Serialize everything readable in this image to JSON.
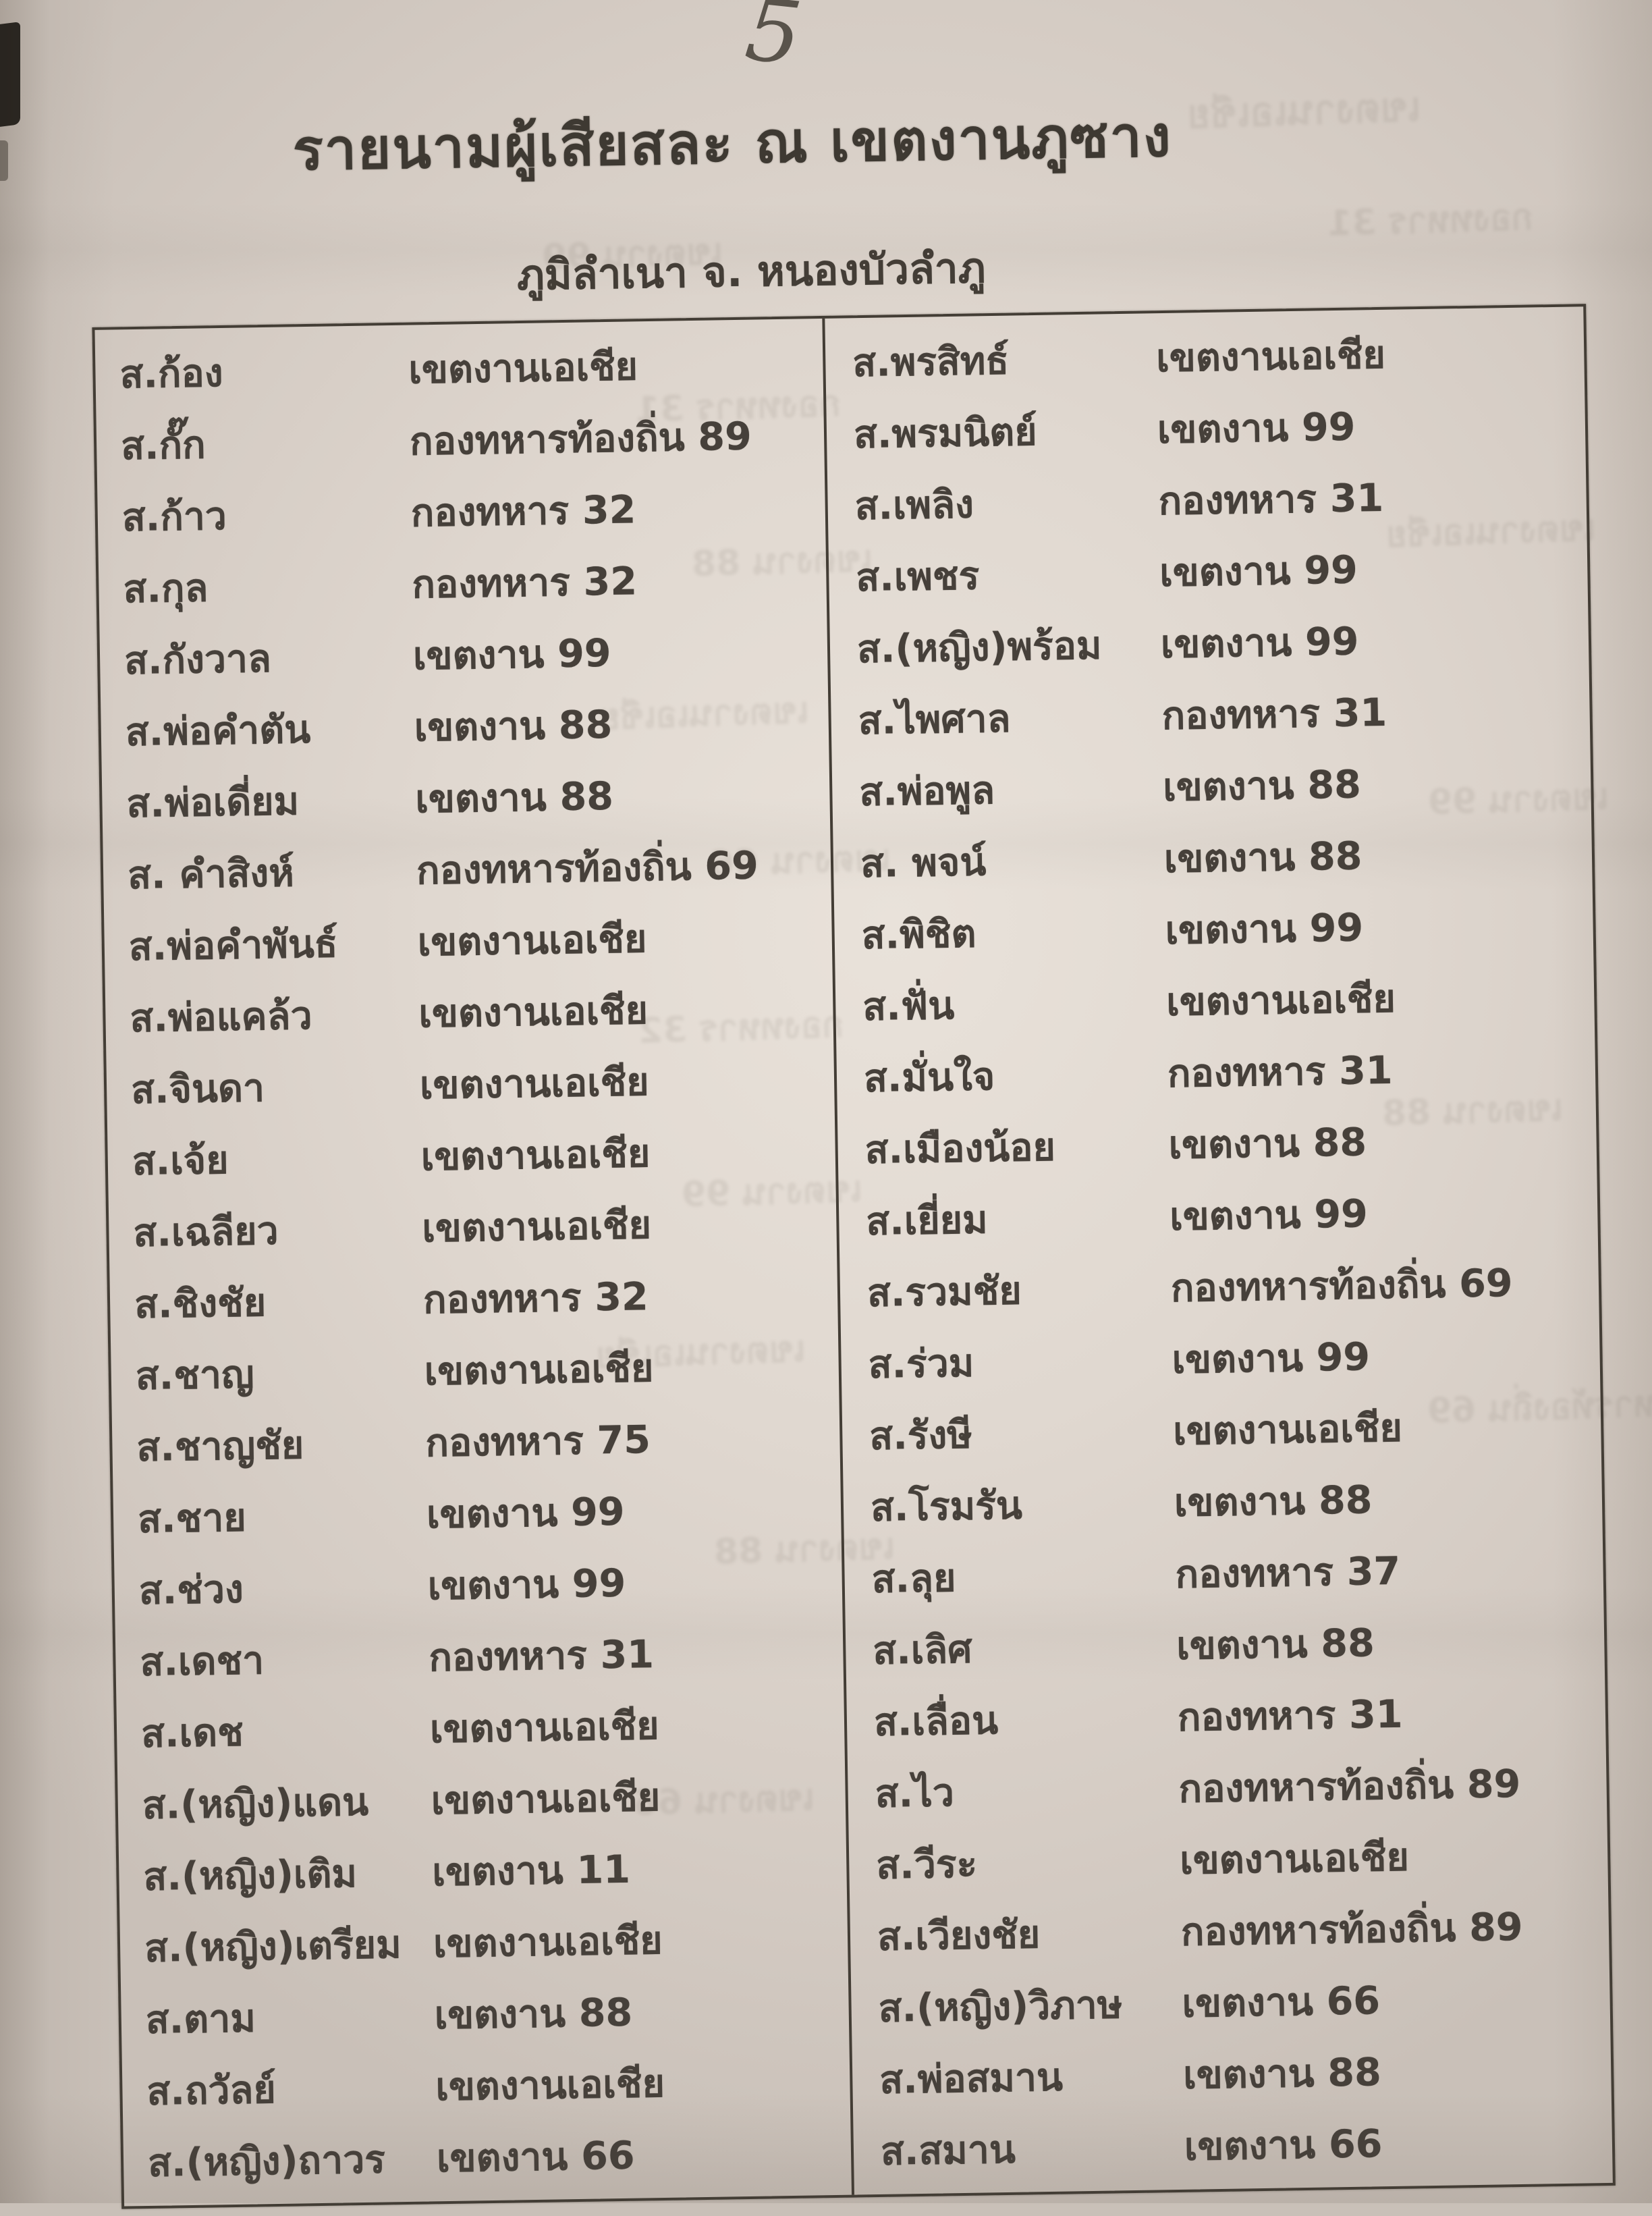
{
  "page": {
    "page_number": "5",
    "title": "รายนามผู้เสียสละ ณ เขตงานภูซาง",
    "subtitle": "ภูมิลำเนา จ. หนองบัวลำภู"
  },
  "table": {
    "left_rows": [
      {
        "n": "ส.ก้อง",
        "u": "เขตงานเอเชีย"
      },
      {
        "n": "ส.กั๊ก",
        "u": "กองทหารท้องถิ่น 89"
      },
      {
        "n": "ส.ก้าว",
        "u": "กองทหาร 32"
      },
      {
        "n": "ส.กุล",
        "u": "กองทหาร 32"
      },
      {
        "n": "ส.กังวาล",
        "u": "เขตงาน 99"
      },
      {
        "n": "ส.พ่อคำตัน",
        "u": "เขตงาน 88"
      },
      {
        "n": "ส.พ่อเดี่ยม",
        "u": "เขตงาน 88"
      },
      {
        "n": "ส. คำสิงห์",
        "u": "กองทหารท้องถิ่น 69"
      },
      {
        "n": "ส.พ่อคำพันธ์",
        "u": "เขตงานเอเชีย"
      },
      {
        "n": "ส.พ่อแคล้ว",
        "u": "เขตงานเอเชีย"
      },
      {
        "n": "ส.จินดา",
        "u": "เขตงานเอเชีย"
      },
      {
        "n": "ส.เจ้ย",
        "u": "เขตงานเอเชีย"
      },
      {
        "n": "ส.เฉลียว",
        "u": "เขตงานเอเชีย"
      },
      {
        "n": "ส.ชิงชัย",
        "u": "กองทหาร 32"
      },
      {
        "n": "ส.ชาญ",
        "u": "เขตงานเอเชีย"
      },
      {
        "n": "ส.ชาญชัย",
        "u": "กองทหาร 75"
      },
      {
        "n": "ส.ชาย",
        "u": "เขตงาน 99"
      },
      {
        "n": "ส.ช่วง",
        "u": "เขตงาน 99"
      },
      {
        "n": "ส.เดชา",
        "u": "กองทหาร 31"
      },
      {
        "n": "ส.เดช",
        "u": "เขตงานเอเชีย"
      },
      {
        "n": "ส.(หญิง)แดน",
        "u": "เขตงานเอเชีย"
      },
      {
        "n": "ส.(หญิง)เติม",
        "u": "เขตงาน 11"
      },
      {
        "n": "ส.(หญิง)เตรียม",
        "u": "เขตงานเอเชีย"
      },
      {
        "n": "ส.ตาม",
        "u": "เขตงาน 88"
      },
      {
        "n": "ส.ถวัลย์",
        "u": "เขตงานเอเชีย"
      },
      {
        "n": "ส.(หญิง)ถาวร",
        "u": "เขตงาน 66"
      }
    ],
    "right_rows": [
      {
        "n": "ส.พรสิทธ์",
        "u": "เขตงานเอเชีย"
      },
      {
        "n": "ส.พรมนิตย์",
        "u": "เขตงาน 99"
      },
      {
        "n": "ส.เพลิง",
        "u": "กองทหาร 31"
      },
      {
        "n": "ส.เพชร",
        "u": "เขตงาน 99"
      },
      {
        "n": "ส.(หญิง)พร้อม",
        "u": "เขตงาน 99"
      },
      {
        "n": "ส.ไพศาล",
        "u": "กองทหาร 31"
      },
      {
        "n": "ส.พ่อพูล",
        "u": "เขตงาน 88"
      },
      {
        "n": "ส. พจน์",
        "u": "เขตงาน 88"
      },
      {
        "n": "ส.พิชิต",
        "u": "เขตงาน 99"
      },
      {
        "n": "ส.ฟั่น",
        "u": "เขตงานเอเชีย"
      },
      {
        "n": "ส.มั่นใจ",
        "u": "กองทหาร 31"
      },
      {
        "n": "ส.เมืองน้อย",
        "u": "เขตงาน 88"
      },
      {
        "n": "ส.เยี่ยม",
        "u": "เขตงาน 99"
      },
      {
        "n": "ส.รวมชัย",
        "u": "กองทหารท้องถิ่น 69"
      },
      {
        "n": "ส.ร่วม",
        "u": "เขตงาน 99"
      },
      {
        "n": "ส.รังษี",
        "u": "เขตงานเอเชีย"
      },
      {
        "n": "ส.โรมรัน",
        "u": "เขตงาน 88"
      },
      {
        "n": "ส.ลุย",
        "u": "กองทหาร 37"
      },
      {
        "n": "ส.เลิศ",
        "u": "เขตงาน 88"
      },
      {
        "n": "ส.เลื่อน",
        "u": "กองทหาร 31"
      },
      {
        "n": "ส.ไว",
        "u": "กองทหารท้องถิ่น 89"
      },
      {
        "n": "ส.วีระ",
        "u": "เขตงานเอเชีย"
      },
      {
        "n": "ส.เวียงชัย",
        "u": "กองทหารท้องถิ่น 89"
      },
      {
        "n": "ส.(หญิง)วิภาษ",
        "u": "เขตงาน 66"
      },
      {
        "n": "ส.พ่อสมาน",
        "u": "เขตงาน 88"
      },
      {
        "n": "ส.สมาน",
        "u": "เขตงาน 66"
      }
    ]
  },
  "decor": {
    "ghost_lines": [
      "เขตงานเอเชีย",
      "เขตงาน 99",
      "กองทหาร 31",
      "เขตงาน 88",
      "เขตงานเอเชีย",
      "เขตงาน 66",
      "กองทหาร 32",
      "เขตงาน 99",
      "เขตงานเอเชีย",
      "เขตงาน 88",
      "กองทหาร 31",
      "เขตงานเอเชีย",
      "เขตงาน 99",
      "เขตงาน 88",
      "กองทหารท้องถิ่น 69",
      "เขตงาน 66"
    ]
  },
  "colors": {
    "paper": "#e0d8d0",
    "ink": "#46403a",
    "border": "#433d35"
  }
}
